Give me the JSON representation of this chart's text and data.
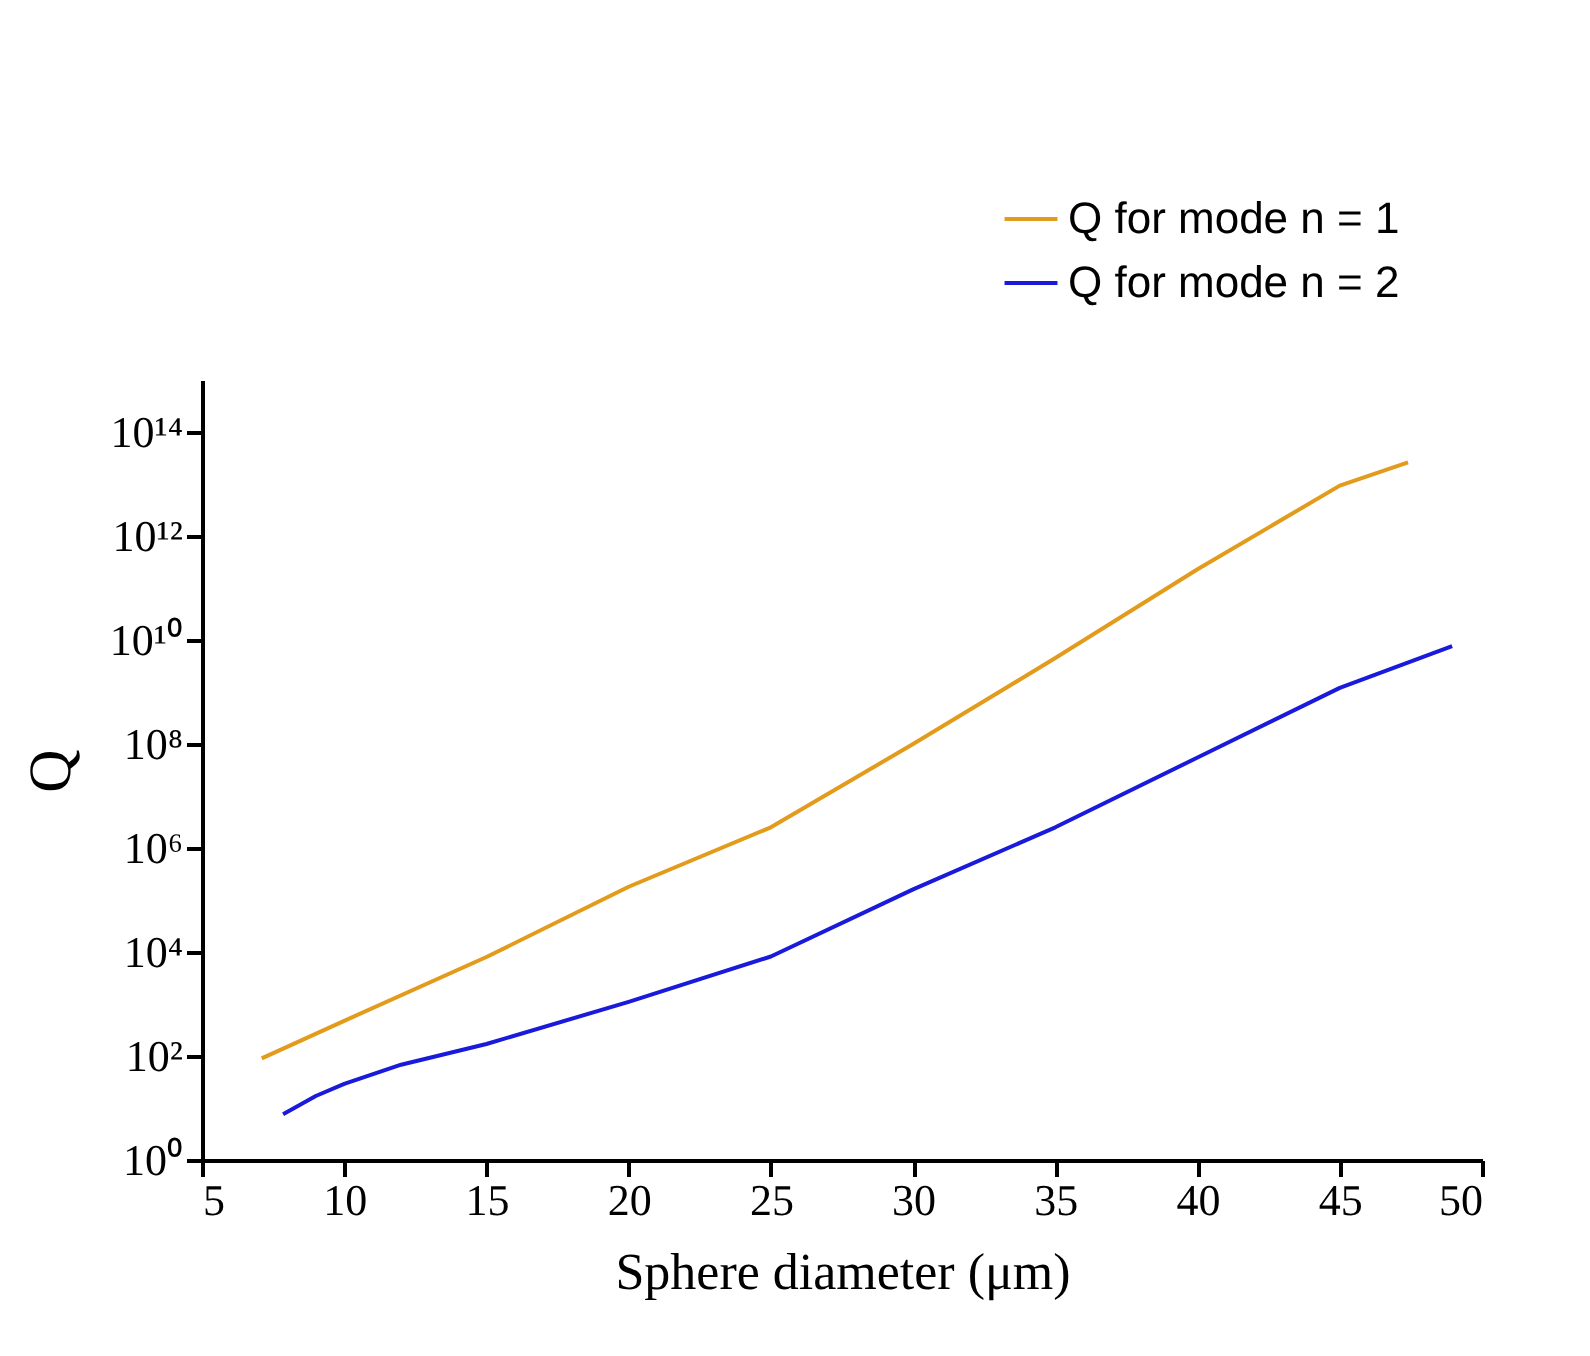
{
  "chart_data": {
    "type": "line",
    "xlabel": "Sphere diameter (μm)",
    "ylabel": "Q",
    "log": "y",
    "xlim": [
      5,
      50
    ],
    "xticks": [
      5,
      10,
      15,
      20,
      25,
      30,
      35,
      40,
      45,
      50
    ],
    "ylim": [
      1,
      1000000000000000.0
    ],
    "yticks": [
      {
        "value": 1,
        "label": "10⁰"
      },
      {
        "value": 100,
        "label": "10²"
      },
      {
        "value": 10000,
        "label": "10⁴"
      },
      {
        "value": 1000000,
        "label": "10⁶"
      },
      {
        "value": 100000000,
        "label": "10⁸"
      },
      {
        "value": 10000000000,
        "label": "10¹⁰"
      },
      {
        "value": 1000000000000,
        "label": "10¹²"
      },
      {
        "value": 100000000000000,
        "label": "10¹⁴"
      }
    ],
    "grid": false,
    "legend": "top right",
    "line_style": "solid",
    "marker": "none",
    "series": [
      {
        "name": "Q for mode n = 1",
        "color": "#e39b1c",
        "x": [
          7.1,
          10,
          15,
          20,
          25,
          30,
          35,
          40,
          45,
          47.4
        ],
        "values": [
          90,
          475,
          8000,
          180000,
          2500000,
          100000000,
          4500000000,
          230000000000,
          9300000000000,
          26000000000000
        ]
      },
      {
        "name": "Q for mode n = 2",
        "color": "#1a1adb",
        "x": [
          7.85,
          9,
          10,
          12,
          15,
          20,
          25,
          30,
          35,
          40,
          45,
          48.95
        ],
        "values": [
          7.6,
          17,
          29,
          68,
          170,
          1100,
          8200,
          160000,
          2500000,
          55000000,
          1200000000,
          7600000000
        ]
      }
    ]
  }
}
